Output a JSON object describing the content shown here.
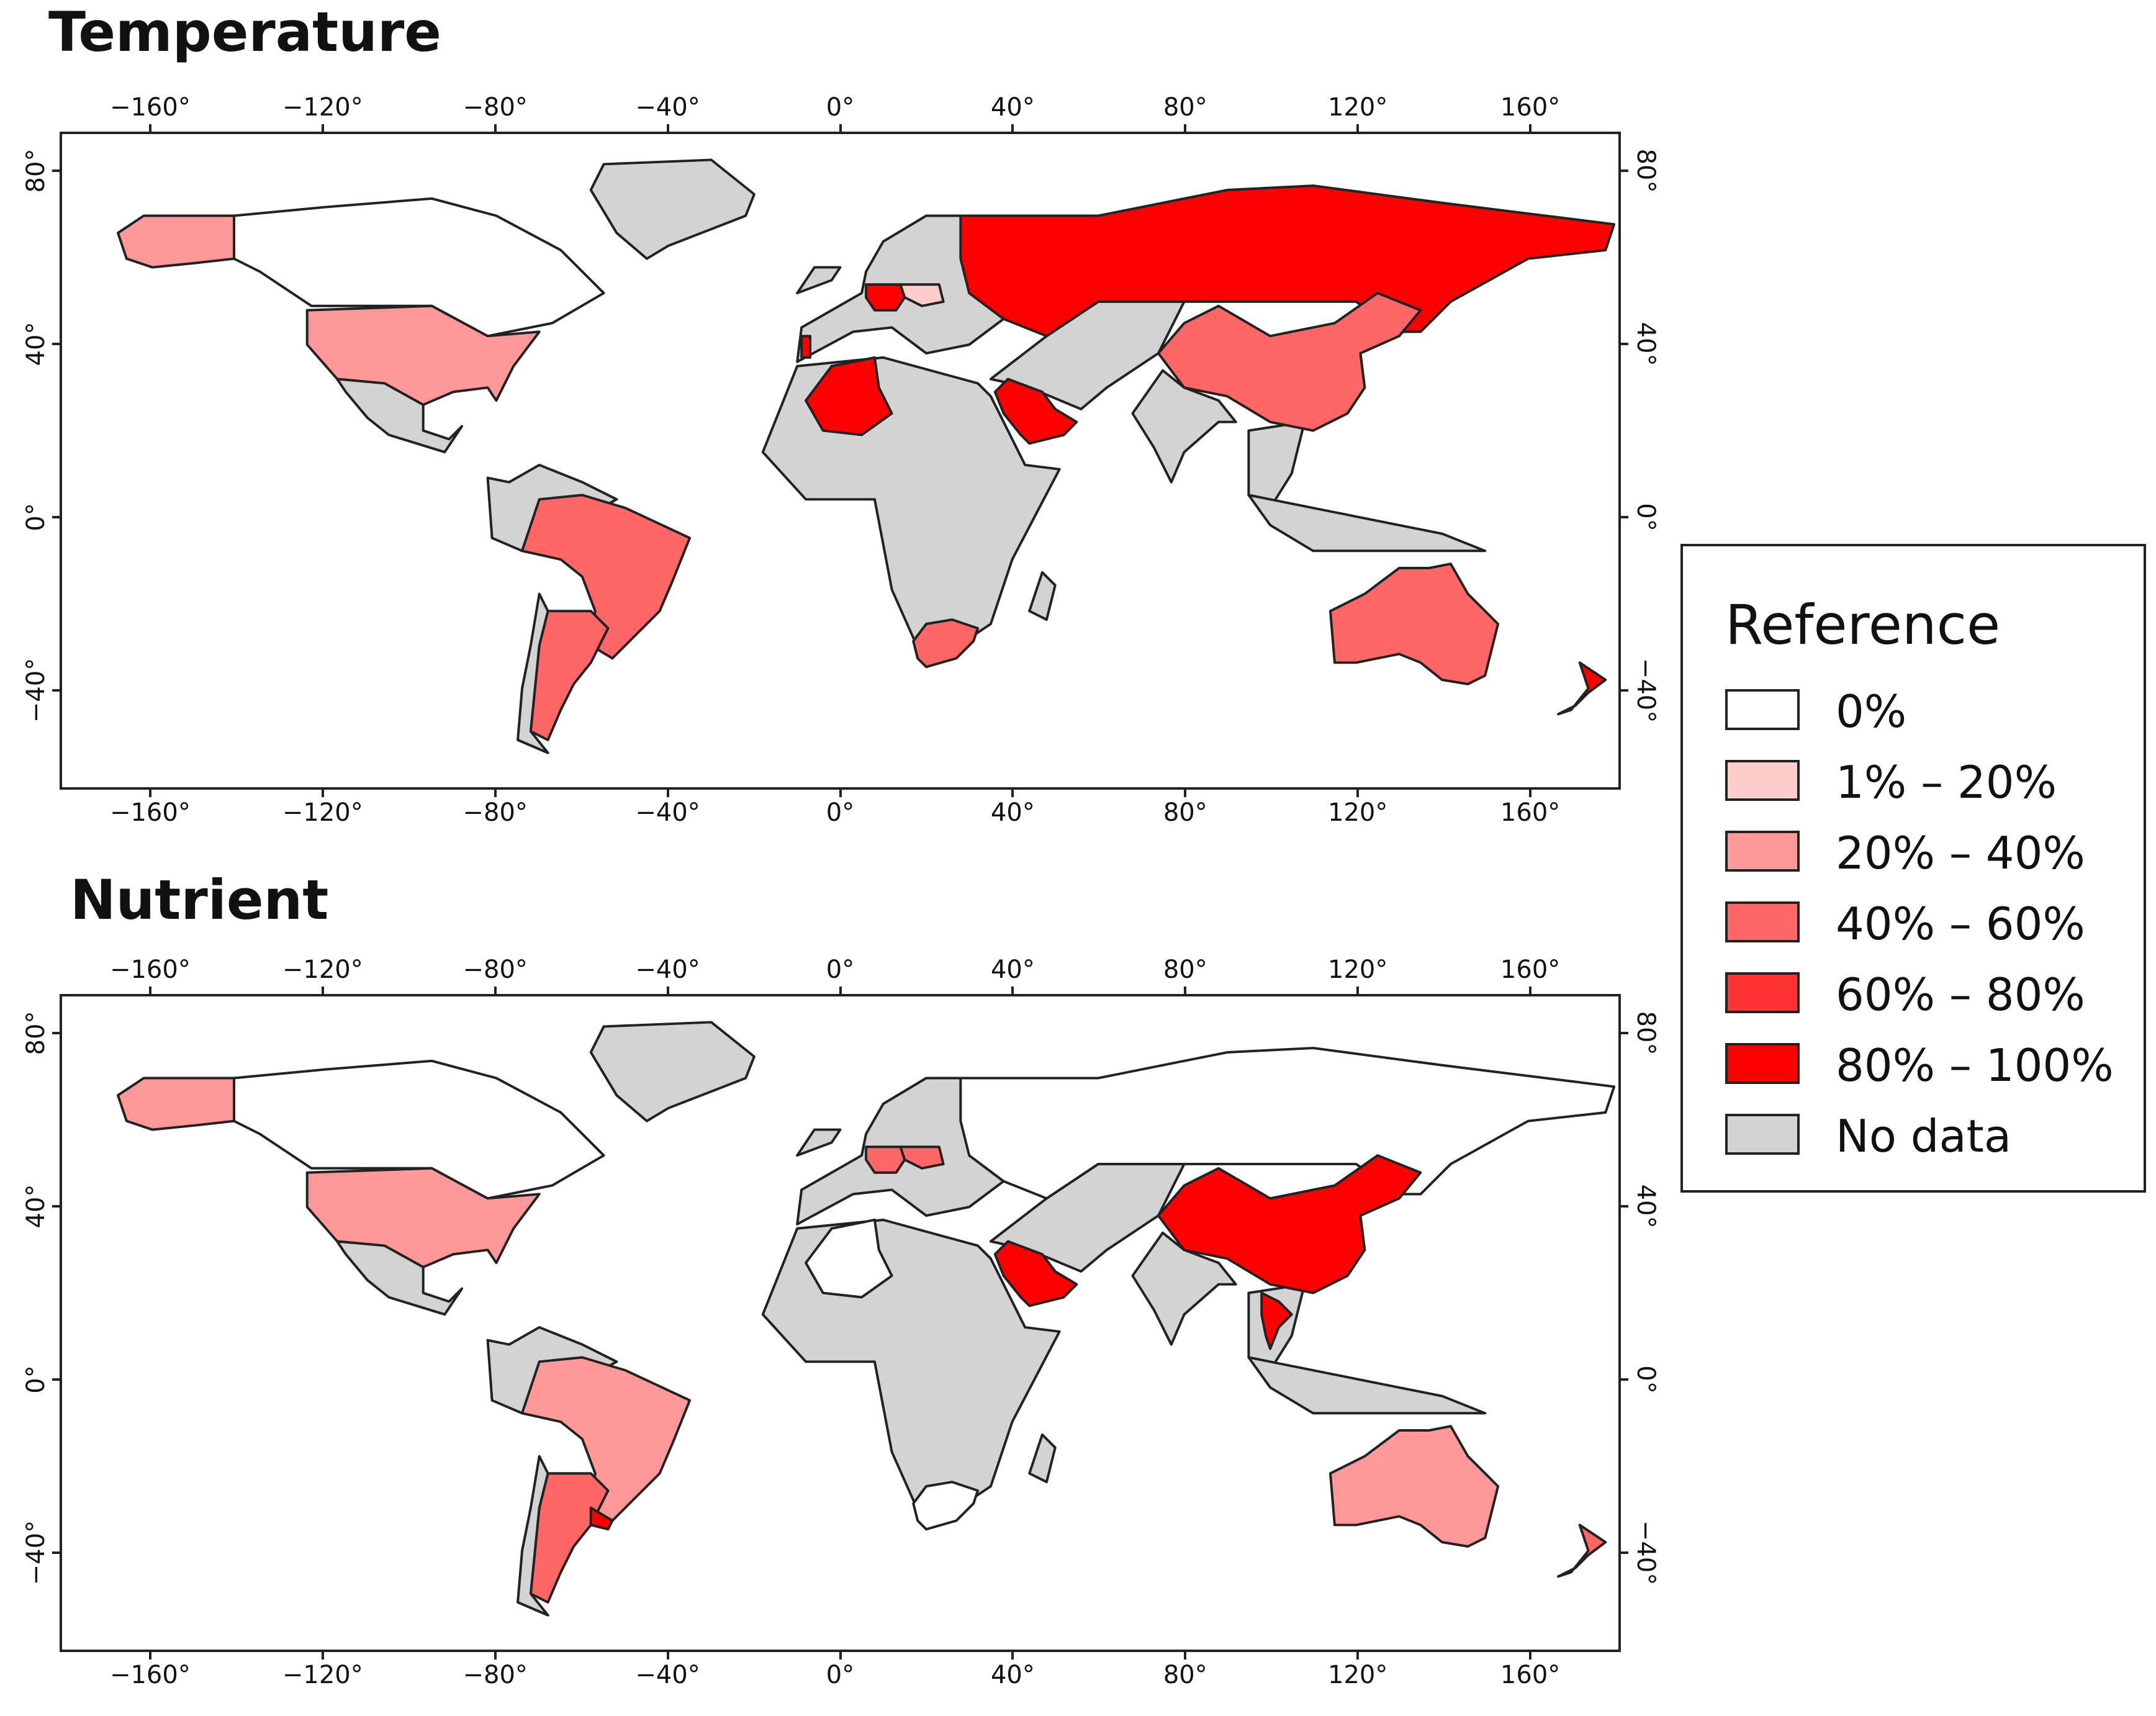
{
  "maps": [
    {
      "title": "Temperature",
      "x_ticks": [
        "−160°",
        "−120°",
        "−80°",
        "−40°",
        "0°",
        "40°",
        "80°",
        "120°",
        "160°"
      ],
      "x_tick_values": [
        -160,
        -120,
        -80,
        -40,
        0,
        40,
        80,
        120,
        160
      ],
      "y_ticks": [
        "80°",
        "40°",
        "0°",
        "−40°"
      ],
      "y_tick_values": [
        80,
        40,
        0,
        -40
      ],
      "countries": [
        {
          "name": "Alaska",
          "class": "20% – 40%"
        },
        {
          "name": "Canada",
          "class": "0%"
        },
        {
          "name": "Greenland",
          "class": "No data"
        },
        {
          "name": "United States",
          "class": "20% – 40%"
        },
        {
          "name": "Mexico",
          "class": "No data"
        },
        {
          "name": "Brazil",
          "class": "40% – 60%"
        },
        {
          "name": "Argentina",
          "class": "40% – 60%"
        },
        {
          "name": "Chile",
          "class": "No data"
        },
        {
          "name": "Russia",
          "class": "80% – 100%"
        },
        {
          "name": "China",
          "class": "40% – 60%"
        },
        {
          "name": "India",
          "class": "No data"
        },
        {
          "name": "Algeria",
          "class": "80% – 100%"
        },
        {
          "name": "Saudi Arabia",
          "class": "80% – 100%"
        },
        {
          "name": "South Africa",
          "class": "40% – 60%"
        },
        {
          "name": "Australia",
          "class": "40% – 60%"
        },
        {
          "name": "New Zealand",
          "class": "80% – 100%"
        },
        {
          "name": "Germany",
          "class": "80% – 100%"
        },
        {
          "name": "Poland",
          "class": "1% – 20%"
        },
        {
          "name": "Portugal",
          "class": "80% – 100%"
        }
      ]
    },
    {
      "title": "Nutrient",
      "x_ticks": [
        "−160°",
        "−120°",
        "−80°",
        "−40°",
        "0°",
        "40°",
        "80°",
        "120°",
        "160°"
      ],
      "x_tick_values": [
        -160,
        -120,
        -80,
        -40,
        0,
        40,
        80,
        120,
        160
      ],
      "y_ticks": [
        "80°",
        "40°",
        "0°",
        "−40°"
      ],
      "y_tick_values": [
        80,
        40,
        0,
        -40
      ],
      "countries": [
        {
          "name": "Alaska",
          "class": "20% – 40%"
        },
        {
          "name": "Canada",
          "class": "0%"
        },
        {
          "name": "Greenland",
          "class": "No data"
        },
        {
          "name": "United States",
          "class": "20% – 40%"
        },
        {
          "name": "Mexico",
          "class": "No data"
        },
        {
          "name": "Brazil",
          "class": "20% – 40%"
        },
        {
          "name": "Argentina",
          "class": "40% – 60%"
        },
        {
          "name": "Uruguay",
          "class": "80% – 100%"
        },
        {
          "name": "Chile",
          "class": "No data"
        },
        {
          "name": "Russia",
          "class": "0%"
        },
        {
          "name": "China",
          "class": "80% – 100%"
        },
        {
          "name": "India",
          "class": "No data"
        },
        {
          "name": "Algeria",
          "class": "0%"
        },
        {
          "name": "Saudi Arabia",
          "class": "80% – 100%"
        },
        {
          "name": "South Africa",
          "class": "0%"
        },
        {
          "name": "Australia",
          "class": "20% – 40%"
        },
        {
          "name": "New Zealand",
          "class": "40% – 60%"
        },
        {
          "name": "Thailand",
          "class": "80% – 100%"
        },
        {
          "name": "Germany",
          "class": "40% – 60%"
        },
        {
          "name": "Poland",
          "class": "40% – 60%"
        }
      ]
    }
  ],
  "legend": {
    "title": "Reference",
    "items": [
      {
        "label": "0%",
        "color": "#ffffff"
      },
      {
        "label": "1% – 20%",
        "color": "#ffcccc"
      },
      {
        "label": "20% – 40%",
        "color": "#ff9999"
      },
      {
        "label": "40% – 60%",
        "color": "#ff6666"
      },
      {
        "label": "60% – 80%",
        "color": "#ff3333"
      },
      {
        "label": "80% – 100%",
        "color": "#ff0000"
      },
      {
        "label": "No data",
        "color": "#d3d3d3"
      }
    ]
  }
}
